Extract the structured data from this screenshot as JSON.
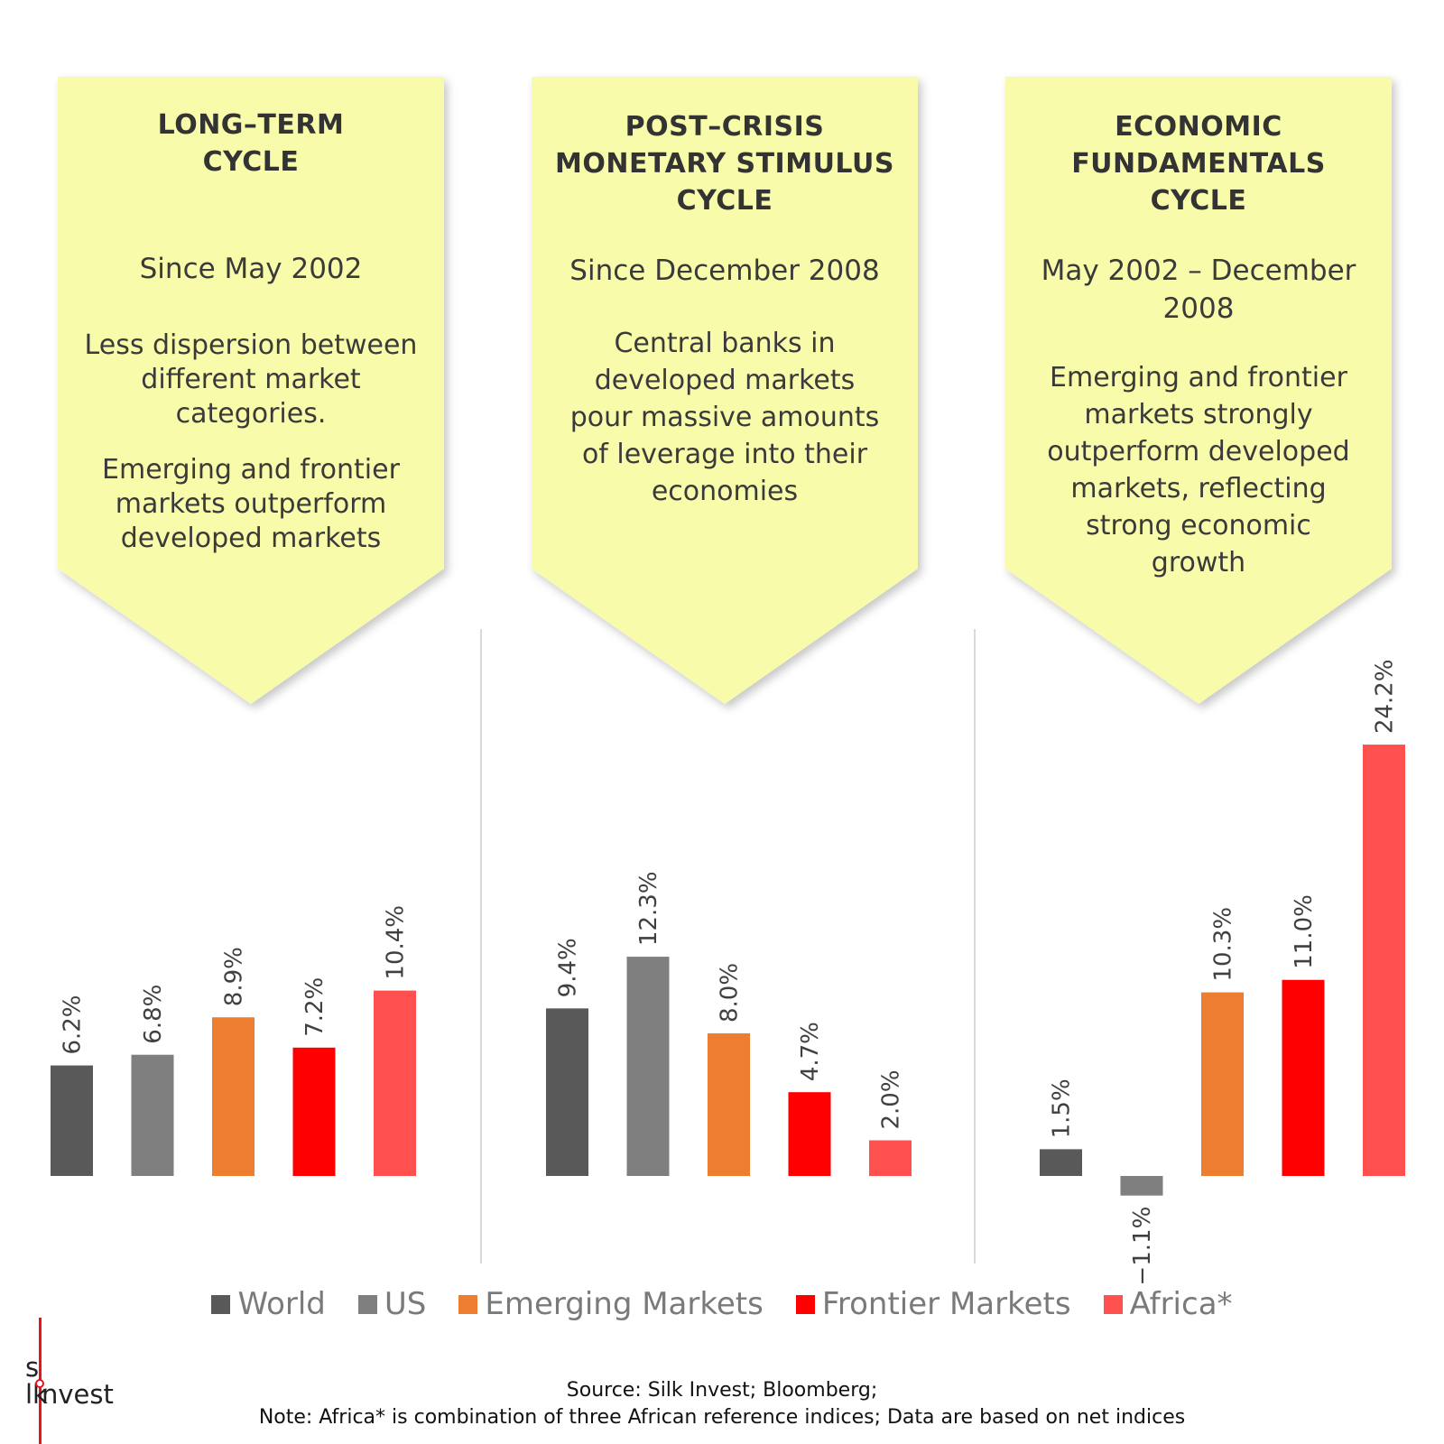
{
  "panels": [
    {
      "title_lines": [
        "LONG–TERM",
        "CYCLE"
      ],
      "period_lines": [
        "Since May 2002"
      ],
      "desc_paragraphs": [
        [
          "Less dispersion between",
          "different market",
          "categories."
        ],
        [
          "Emerging and frontier",
          "markets outperform",
          "developed markets"
        ]
      ]
    },
    {
      "title_lines": [
        "POST–CRISIS",
        "MONETARY STIMULUS",
        "CYCLE"
      ],
      "period_lines": [
        "Since December 2008"
      ],
      "desc_paragraphs": [
        [
          "Central banks in",
          "developed markets",
          "pour massive amounts",
          "of leverage into their",
          "economies"
        ]
      ]
    },
    {
      "title_lines": [
        "ECONOMIC",
        "FUNDAMENTALS",
        "CYCLE"
      ],
      "period_lines": [
        "May 2002 – December",
        "2008"
      ],
      "desc_paragraphs": [
        [
          "Emerging and frontier",
          "markets strongly",
          "outperform developed",
          "markets, reflecting",
          "strong economic",
          "growth"
        ]
      ]
    }
  ],
  "chart_data": {
    "type": "bar",
    "categories": [
      "LONG–TERM CYCLE",
      "POST–CRISIS MONETARY STIMULUS CYCLE",
      "ECONOMIC FUNDAMENTALS CYCLE"
    ],
    "series": [
      {
        "name": "World",
        "color": "#595959",
        "values": [
          6.2,
          9.4,
          1.5
        ],
        "labels": [
          "6.2%",
          "9.4%",
          "1.5%"
        ]
      },
      {
        "name": "US",
        "color": "#7f7f7f",
        "values": [
          6.8,
          12.3,
          -1.1
        ],
        "labels": [
          "6.8%",
          "12.3%",
          "−1.1%"
        ]
      },
      {
        "name": "Emerging Markets",
        "color": "#ed7d31",
        "values": [
          8.9,
          8.0,
          10.3
        ],
        "labels": [
          "8.9%",
          "8.0%",
          "10.3%"
        ]
      },
      {
        "name": "Frontier Markets",
        "color": "#ff0000",
        "values": [
          7.2,
          4.7,
          11.0
        ],
        "labels": [
          "7.2%",
          "4.7%",
          "11.0%"
        ]
      },
      {
        "name": "Africa*",
        "color": "#ff5050",
        "values": [
          10.4,
          2.0,
          24.2
        ],
        "labels": [
          "10.4%",
          "2.0%",
          "24.2%"
        ]
      }
    ],
    "unit": "%",
    "grid": false,
    "legend_position": "bottom"
  },
  "colors": {
    "box_fill": "#f8fcaa",
    "logo_accent": "#e8141c"
  },
  "logo": {
    "line1": "s lk",
    "line2": "nvest"
  },
  "footer": {
    "source": "Source: Silk Invest; Bloomberg;",
    "note": "Note: Africa* is combination of three African reference indices; Data are based on net indices"
  }
}
